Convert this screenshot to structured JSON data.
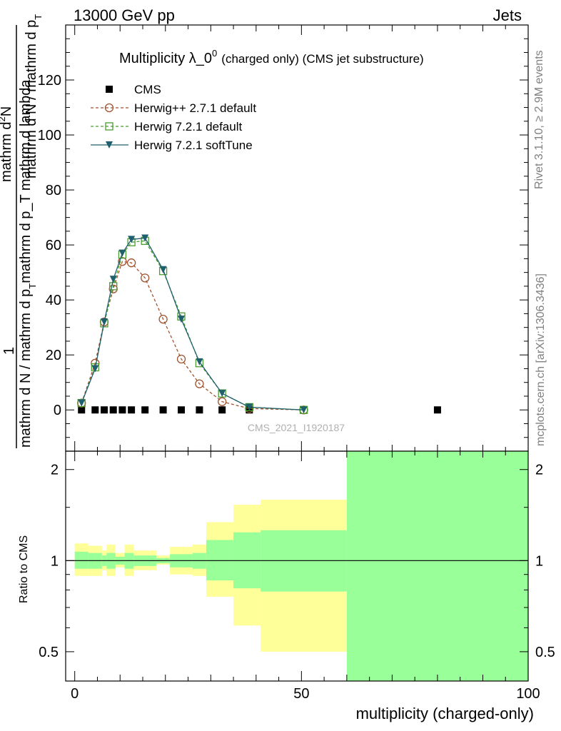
{
  "header": {
    "left": "13000 GeV pp",
    "right": "Jets"
  },
  "side_labels": {
    "rivet": "Rivet 3.1.10, ≥ 2.9M events",
    "mcplots": "mcplots.cern.ch [arXiv:1306.3436]"
  },
  "chart_data": [
    {
      "type": "line",
      "panel": "main",
      "title_main": "Multiplicity λ_0",
      "title_sup": "0",
      "title_suffix": "(charged only) (CMS jet substructure)",
      "watermark": "CMS_2021_I1920187",
      "ylabel_numerator": "1",
      "ylabel_denominator": "mathrm d N / mathrm d p",
      "ylabel_main_line": "mathrm d N / mathrm d p",
      "ylabel_rest": "mathrm d p_T mathrm d lambda",
      "ylabel_sub_T": "T",
      "ylabel_dN": "mathrm d",
      "ylabel_N": "N",
      "ylabel_sup2": "2",
      "ylabel_text": "mathrm d N",
      "xlim": [
        -2,
        100
      ],
      "ylim": [
        -15,
        140
      ],
      "y_ticks": [
        "0",
        "20",
        "40",
        "60",
        "80",
        "100",
        "120"
      ],
      "y_tick_values": [
        0,
        20,
        40,
        60,
        80,
        100,
        120
      ],
      "legend_placement": "top-left",
      "series": [
        {
          "name": "CMS",
          "marker": "square-filled",
          "color": "#000000",
          "x": [
            1.5,
            4.5,
            6.5,
            8.5,
            10.5,
            12.5,
            15.5,
            19.5,
            23.5,
            27.5,
            32.5,
            38.5,
            80
          ],
          "y": [
            0,
            0,
            0,
            0,
            0,
            0,
            0,
            0,
            0,
            0,
            0,
            0,
            0
          ]
        },
        {
          "name": "Herwig++ 2.7.1 default",
          "marker": "circle-open",
          "color": "#a0522d",
          "dash": "4,3",
          "x": [
            1.5,
            4.5,
            6.5,
            8.5,
            10.5,
            12.5,
            15.5,
            19.5,
            23.5,
            27.5,
            32.5,
            38.5,
            50.5
          ],
          "y": [
            2.5,
            17,
            32,
            44,
            54,
            53.5,
            48,
            33,
            18.5,
            9.5,
            3,
            0.5,
            0
          ]
        },
        {
          "name": "Herwig 7.2.1 default",
          "marker": "square-open",
          "color": "#4a9e2f",
          "dash": "4,3",
          "x": [
            1.5,
            4.5,
            6.5,
            8.5,
            10.5,
            12.5,
            15.5,
            19.5,
            23.5,
            27.5,
            32.5,
            38.5,
            50.5
          ],
          "y": [
            2.5,
            15.5,
            31.5,
            45,
            56.5,
            61,
            61.5,
            50.5,
            34,
            17,
            6,
            1,
            0
          ]
        },
        {
          "name": "Herwig 7.2.1 softTune",
          "marker": "triangle-down-filled",
          "color": "#1f5f6e",
          "dash": "",
          "x": [
            1.5,
            4.5,
            6.5,
            8.5,
            10.5,
            12.5,
            15.5,
            19.5,
            23.5,
            27.5,
            32.5,
            38.5,
            50.5
          ],
          "y": [
            2.5,
            15,
            32,
            47.5,
            57,
            62,
            62.5,
            51,
            33,
            17.5,
            6,
            1,
            0
          ]
        }
      ]
    },
    {
      "type": "area",
      "panel": "ratio",
      "ylabel": "Ratio to CMS",
      "xlabel": "multiplicity (charged-only)",
      "x_ticks": [
        "0",
        "50",
        "100"
      ],
      "x_tick_values": [
        0,
        50,
        100
      ],
      "y_ticks": [
        "0.5",
        "1",
        "2"
      ],
      "y_tick_values": [
        0.5,
        1,
        2
      ],
      "y_scale": "log",
      "ylim": [
        0.4,
        2.3
      ],
      "reference_line": 1,
      "colors": {
        "inner": "#99ff99",
        "outer": "#ffff99"
      },
      "bins": [
        {
          "x0": 0,
          "x1": 3,
          "in_lo": 0.94,
          "in_hi": 1.07,
          "out_lo": 0.89,
          "out_hi": 1.14
        },
        {
          "x0": 3,
          "x1": 6,
          "in_lo": 0.94,
          "in_hi": 1.06,
          "out_lo": 0.89,
          "out_hi": 1.12
        },
        {
          "x0": 6,
          "x1": 7,
          "in_lo": 0.96,
          "in_hi": 1.04,
          "out_lo": 0.93,
          "out_hi": 1.08
        },
        {
          "x0": 7,
          "x1": 9,
          "in_lo": 0.94,
          "in_hi": 1.06,
          "out_lo": 0.89,
          "out_hi": 1.13
        },
        {
          "x0": 9,
          "x1": 11,
          "in_lo": 0.97,
          "in_hi": 1.03,
          "out_lo": 0.95,
          "out_hi": 1.06
        },
        {
          "x0": 11,
          "x1": 13,
          "in_lo": 0.94,
          "in_hi": 1.06,
          "out_lo": 0.89,
          "out_hi": 1.13
        },
        {
          "x0": 13,
          "x1": 18,
          "in_lo": 0.96,
          "in_hi": 1.04,
          "out_lo": 0.93,
          "out_hi": 1.08
        },
        {
          "x0": 18,
          "x1": 21,
          "in_lo": 0.98,
          "in_hi": 1.02,
          "out_lo": 0.97,
          "out_hi": 1.04
        },
        {
          "x0": 21,
          "x1": 26,
          "in_lo": 0.95,
          "in_hi": 1.05,
          "out_lo": 0.9,
          "out_hi": 1.11
        },
        {
          "x0": 26,
          "x1": 29,
          "in_lo": 0.94,
          "in_hi": 1.06,
          "out_lo": 0.89,
          "out_hi": 1.13
        },
        {
          "x0": 29,
          "x1": 35,
          "in_lo": 0.86,
          "in_hi": 1.17,
          "out_lo": 0.76,
          "out_hi": 1.34
        },
        {
          "x0": 35,
          "x1": 41,
          "in_lo": 0.81,
          "in_hi": 1.24,
          "out_lo": 0.61,
          "out_hi": 1.53
        },
        {
          "x0": 41,
          "x1": 60,
          "in_lo": 0.79,
          "in_hi": 1.26,
          "out_lo": 0.5,
          "out_hi": 1.59
        },
        {
          "x0": 60,
          "x1": 100,
          "in_lo": 0.4,
          "in_hi": 2.3,
          "out_lo": 0.4,
          "out_hi": 2.3
        }
      ]
    }
  ]
}
